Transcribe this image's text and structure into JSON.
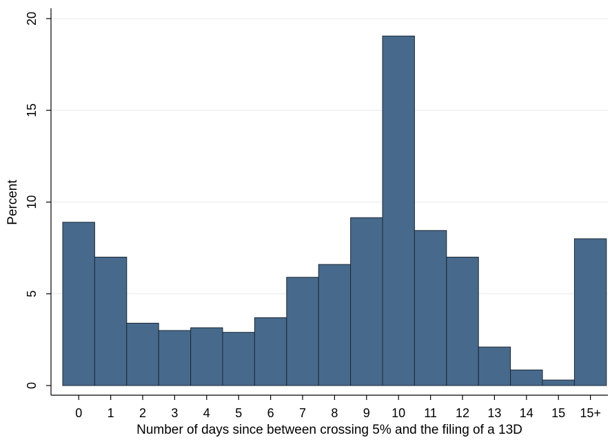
{
  "chart_data": {
    "type": "bar",
    "title": "",
    "xlabel": "Number of days since between crossing 5% and the filing of a 13D",
    "ylabel": "Percent",
    "categories": [
      "0",
      "1",
      "2",
      "3",
      "4",
      "5",
      "6",
      "7",
      "8",
      "9",
      "10",
      "11",
      "12",
      "13",
      "14",
      "15",
      "15+"
    ],
    "values": [
      8.9,
      7.0,
      3.4,
      3.0,
      3.15,
      2.9,
      3.7,
      5.9,
      6.6,
      9.15,
      19.05,
      8.45,
      7.0,
      2.1,
      0.85,
      0.3,
      8.0
    ],
    "ylim": [
      0,
      20
    ],
    "yticks": [
      "0",
      "5",
      "10",
      "15",
      "20"
    ],
    "grid": true,
    "bar_color": "#476a8c",
    "bar_edge_color": "#1a2633",
    "grid_color": "#e6e9ee"
  }
}
